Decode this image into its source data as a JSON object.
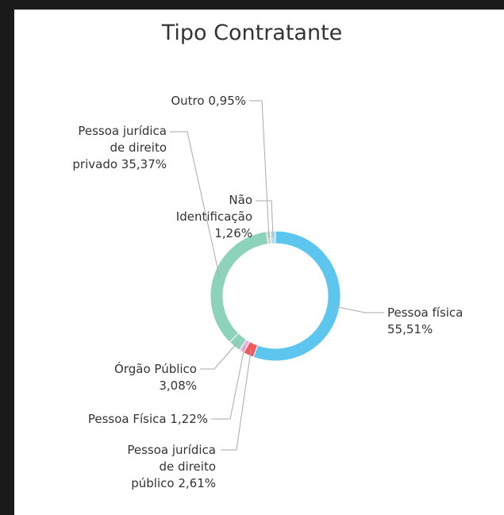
{
  "chart_data": {
    "type": "pie",
    "title": "Tipo Contratante",
    "categories": [
      "Pessoa física",
      "Pessoa jurídica\nde direito\npúblico",
      "Pessoa Física",
      "Órgão Público",
      "Pessoa jurídica\nde direito\nprivado",
      "Outro",
      "Não\nIdentificação"
    ],
    "values": [
      55.51,
      2.61,
      1.22,
      3.08,
      35.37,
      0.95,
      1.26
    ],
    "value_labels": [
      "55,51%",
      "2,61%",
      "1,22%",
      "3,08%",
      "35,37%",
      "0,95%",
      "1,26%"
    ],
    "colors": [
      "#5cc6ee",
      "#ee5a5c",
      "#f6aee0",
      "#8dd3bb",
      "#8dd3bb",
      "#d0d0d0",
      "#b3def2"
    ],
    "donut": true
  }
}
